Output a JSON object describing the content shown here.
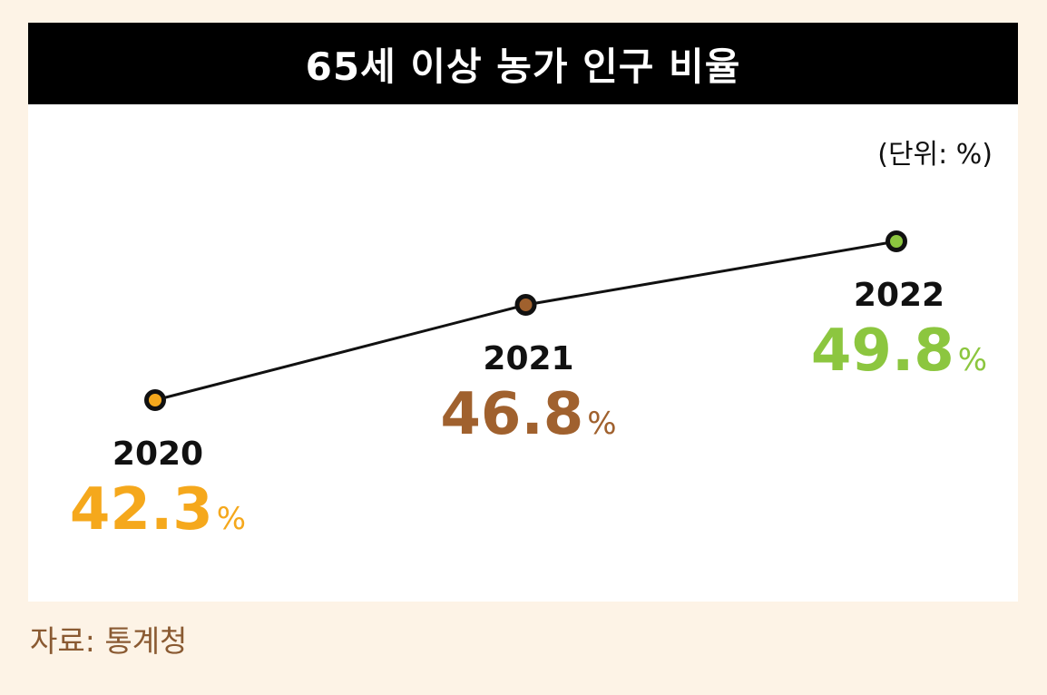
{
  "title": "65세 이상 농가 인구 비율",
  "unit_note": "(단위: %)",
  "source": "자료: 통계청",
  "chart_data": {
    "type": "line",
    "title": "65세 이상 농가 인구 비율",
    "x": [
      "2020",
      "2021",
      "2022"
    ],
    "series": [
      {
        "values": [
          42.3,
          46.8,
          49.8
        ]
      }
    ],
    "value_suffix": "%",
    "point_colors": [
      "#f5a81c",
      "#a0612e",
      "#8cc63f"
    ],
    "label_colors": [
      "#f5a81c",
      "#a0612e",
      "#8cc63f"
    ],
    "grid": false,
    "legend": "none"
  }
}
